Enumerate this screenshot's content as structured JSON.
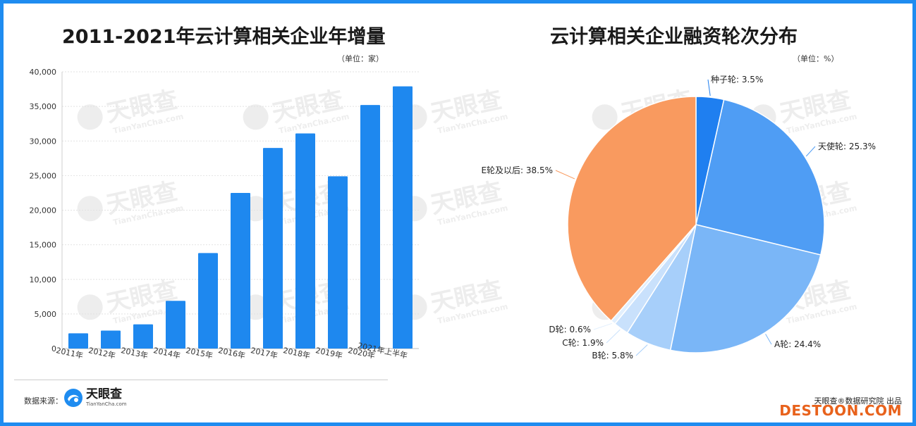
{
  "left_title": "2011-2021年云计算相关企业年增量",
  "left_unit": "（单位：家）",
  "right_title": "云计算相关企业融资轮次分布",
  "right_unit": "（单位：%）",
  "source_label": "数据来源：",
  "logo_text": "天眼查",
  "logo_sub": "TianYanCha.com",
  "watermark_text": "天眼查",
  "watermark_sub": "TianYanCha.com",
  "brand_label": "天眼查®数据研究院 出品",
  "site_label": "DESTOON.COM",
  "colors": {
    "frame": "#1f8cf0",
    "bar": "#1e88ef",
    "brand_site": "#e8621c"
  },
  "chart_data": [
    {
      "type": "bar",
      "title": "2011-2021年云计算相关企业年增量",
      "categories": [
        "2011年",
        "2012年",
        "2013年",
        "2014年",
        "2015年",
        "2016年",
        "2017年",
        "2018年",
        "2019年",
        "2020年",
        "2021年上半年"
      ],
      "values": [
        2200,
        2600,
        3500,
        6900,
        13800,
        22500,
        29000,
        31100,
        24900,
        35200,
        37900
      ],
      "yticks": [
        "0",
        "5,000",
        "10,000",
        "15,000",
        "20,000",
        "25,000",
        "30,000",
        "35,000",
        "40,000"
      ],
      "ylim": [
        0,
        40000
      ],
      "grid": true,
      "xlabel": "",
      "ylabel": ""
    },
    {
      "type": "pie",
      "title": "云计算相关企业融资轮次分布",
      "slices": [
        {
          "label": "种子轮: 3.5%",
          "value": 3.5,
          "color": "#1f7ff0"
        },
        {
          "label": "天使轮: 25.3%",
          "value": 25.3,
          "color": "#4f9df4"
        },
        {
          "label": "A轮: 24.4%",
          "value": 24.4,
          "color": "#7ab6f7"
        },
        {
          "label": "B轮: 5.8%",
          "value": 5.8,
          "color": "#a7cffa"
        },
        {
          "label": "C轮: 1.9%",
          "value": 1.9,
          "color": "#c9e1fc"
        },
        {
          "label": "D轮: 0.6%",
          "value": 0.6,
          "color": "#e2effd"
        },
        {
          "label": "E轮及以后: 38.5%",
          "value": 38.5,
          "color": "#f99a5f"
        }
      ]
    }
  ]
}
